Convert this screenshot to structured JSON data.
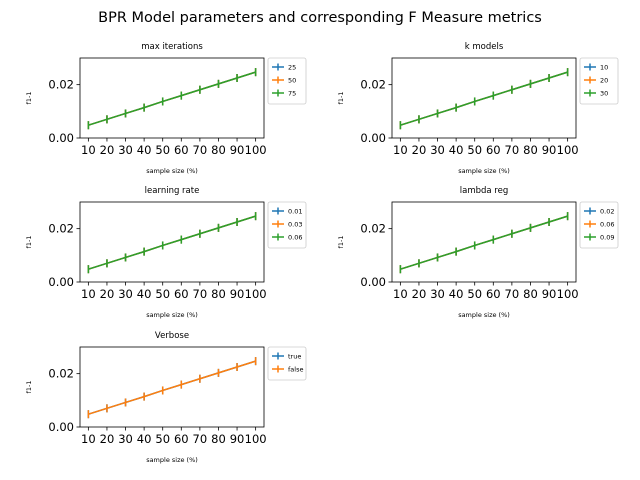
{
  "figure": {
    "title": "BPR Model parameters and corresponding F Measure metrics"
  },
  "colors": {
    "series1": "#1f77b4",
    "series2": "#ff7f0e",
    "series3": "#2ca02c",
    "legend_border": "#cccccc"
  },
  "chart_data": [
    {
      "type": "line",
      "title": "max iterations",
      "xlabel": "sample size (%)",
      "ylabel": "f1-1",
      "x": [
        10,
        20,
        30,
        40,
        50,
        60,
        70,
        80,
        90,
        100
      ],
      "ylim": [
        0,
        0.03
      ],
      "yticks": [
        "0.00",
        "0.02"
      ],
      "error_bars": true,
      "legend": "outside-right",
      "series": [
        {
          "name": "25",
          "values": [
            0.0048,
            0.007,
            0.0092,
            0.0114,
            0.0137,
            0.0159,
            0.0181,
            0.0203,
            0.0225,
            0.0247
          ],
          "err": 0.0015
        },
        {
          "name": "50",
          "values": [
            0.0048,
            0.007,
            0.0092,
            0.0114,
            0.0137,
            0.0159,
            0.0181,
            0.0203,
            0.0225,
            0.0247
          ],
          "err": 0.0015
        },
        {
          "name": "75",
          "values": [
            0.0048,
            0.007,
            0.0092,
            0.0114,
            0.0137,
            0.0159,
            0.0181,
            0.0203,
            0.0225,
            0.0247
          ],
          "err": 0.0015
        }
      ]
    },
    {
      "type": "line",
      "title": "k models",
      "xlabel": "sample size (%)",
      "ylabel": "f1-1",
      "x": [
        10,
        20,
        30,
        40,
        50,
        60,
        70,
        80,
        90,
        100
      ],
      "ylim": [
        0,
        0.03
      ],
      "yticks": [
        "0.00",
        "0.02"
      ],
      "error_bars": true,
      "legend": "outside-right",
      "series": [
        {
          "name": "10",
          "values": [
            0.0048,
            0.007,
            0.0092,
            0.0114,
            0.0137,
            0.0159,
            0.0181,
            0.0203,
            0.0225,
            0.0247
          ],
          "err": 0.0015
        },
        {
          "name": "20",
          "values": [
            0.0048,
            0.007,
            0.0092,
            0.0114,
            0.0137,
            0.0159,
            0.0181,
            0.0203,
            0.0225,
            0.0247
          ],
          "err": 0.0015
        },
        {
          "name": "30",
          "values": [
            0.0048,
            0.007,
            0.0092,
            0.0114,
            0.0137,
            0.0159,
            0.0181,
            0.0203,
            0.0225,
            0.0247
          ],
          "err": 0.0015
        }
      ]
    },
    {
      "type": "line",
      "title": "learning rate",
      "xlabel": "sample size (%)",
      "ylabel": "f1-1",
      "x": [
        10,
        20,
        30,
        40,
        50,
        60,
        70,
        80,
        90,
        100
      ],
      "ylim": [
        0,
        0.03
      ],
      "yticks": [
        "0.00",
        "0.02"
      ],
      "error_bars": true,
      "legend": "outside-right",
      "series": [
        {
          "name": "0.01",
          "values": [
            0.0048,
            0.007,
            0.0092,
            0.0114,
            0.0137,
            0.0159,
            0.0181,
            0.0203,
            0.0225,
            0.0247
          ],
          "err": 0.0015
        },
        {
          "name": "0.03",
          "values": [
            0.0048,
            0.007,
            0.0092,
            0.0114,
            0.0137,
            0.0159,
            0.0181,
            0.0203,
            0.0225,
            0.0247
          ],
          "err": 0.0015
        },
        {
          "name": "0.06",
          "values": [
            0.0048,
            0.007,
            0.0092,
            0.0114,
            0.0137,
            0.0159,
            0.0181,
            0.0203,
            0.0225,
            0.0247
          ],
          "err": 0.0015
        }
      ]
    },
    {
      "type": "line",
      "title": "lambda reg",
      "xlabel": "sample size (%)",
      "ylabel": "f1-1",
      "x": [
        10,
        20,
        30,
        40,
        50,
        60,
        70,
        80,
        90,
        100
      ],
      "ylim": [
        0,
        0.03
      ],
      "yticks": [
        "0.00",
        "0.02"
      ],
      "error_bars": true,
      "legend": "outside-right",
      "series": [
        {
          "name": "0.02",
          "values": [
            0.0048,
            0.007,
            0.0092,
            0.0114,
            0.0137,
            0.0159,
            0.0181,
            0.0203,
            0.0225,
            0.0247
          ],
          "err": 0.0015
        },
        {
          "name": "0.06",
          "values": [
            0.0048,
            0.007,
            0.0092,
            0.0114,
            0.0137,
            0.0159,
            0.0181,
            0.0203,
            0.0225,
            0.0247
          ],
          "err": 0.0015
        },
        {
          "name": "0.09",
          "values": [
            0.0048,
            0.007,
            0.0092,
            0.0114,
            0.0137,
            0.0159,
            0.0181,
            0.0203,
            0.0225,
            0.0247
          ],
          "err": 0.0015
        }
      ]
    },
    {
      "type": "line",
      "title": "Verbose",
      "xlabel": "sample size (%)",
      "ylabel": "f1-1",
      "x": [
        10,
        20,
        30,
        40,
        50,
        60,
        70,
        80,
        90,
        100
      ],
      "ylim": [
        0,
        0.03
      ],
      "yticks": [
        "0.00",
        "0.02"
      ],
      "error_bars": true,
      "legend": "outside-right",
      "series": [
        {
          "name": "true",
          "values": [
            0.0048,
            0.007,
            0.0092,
            0.0114,
            0.0137,
            0.0159,
            0.0181,
            0.0203,
            0.0225,
            0.0247
          ],
          "err": 0.0015
        },
        {
          "name": "false",
          "values": [
            0.0048,
            0.007,
            0.0092,
            0.0114,
            0.0137,
            0.0159,
            0.0181,
            0.0203,
            0.0225,
            0.0247
          ],
          "err": 0.0015
        }
      ]
    }
  ]
}
